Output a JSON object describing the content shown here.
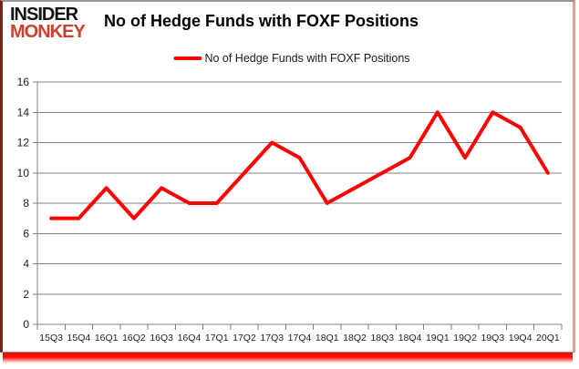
{
  "logo": {
    "line1": "INSIDER",
    "line2": "MONKEY"
  },
  "title": "No of Hedge Funds with FOXF Positions",
  "legend": {
    "label": "No of Hedge Funds with FOXF Positions"
  },
  "colors": {
    "series_line": "#ff0000",
    "gridline": "#808080",
    "axis_text": "#1f1f1f",
    "logo_top": "#131313",
    "logo_bottom": "#ce4130",
    "bottom_glow": "#ff0000"
  },
  "chart_data": {
    "type": "line",
    "title": "No of Hedge Funds with FOXF Positions",
    "categories": [
      "15Q3",
      "15Q4",
      "16Q1",
      "16Q2",
      "16Q3",
      "16Q4",
      "17Q1",
      "17Q2",
      "17Q3",
      "17Q4",
      "18Q1",
      "18Q2",
      "18Q3",
      "18Q4",
      "19Q1",
      "19Q2",
      "19Q3",
      "19Q4",
      "20Q1"
    ],
    "series": [
      {
        "name": "No of Hedge Funds with FOXF Positions",
        "color": "#ff0000",
        "values": [
          7,
          7,
          9,
          7,
          9,
          8,
          8,
          10,
          12,
          11,
          8,
          9,
          10,
          11,
          14,
          11,
          14,
          13,
          10
        ]
      }
    ],
    "xlabel": "",
    "ylabel": "",
    "ylim": [
      0,
      16
    ],
    "ytick_step": 2,
    "grid": "horizontal",
    "legend_position": "top-center"
  }
}
